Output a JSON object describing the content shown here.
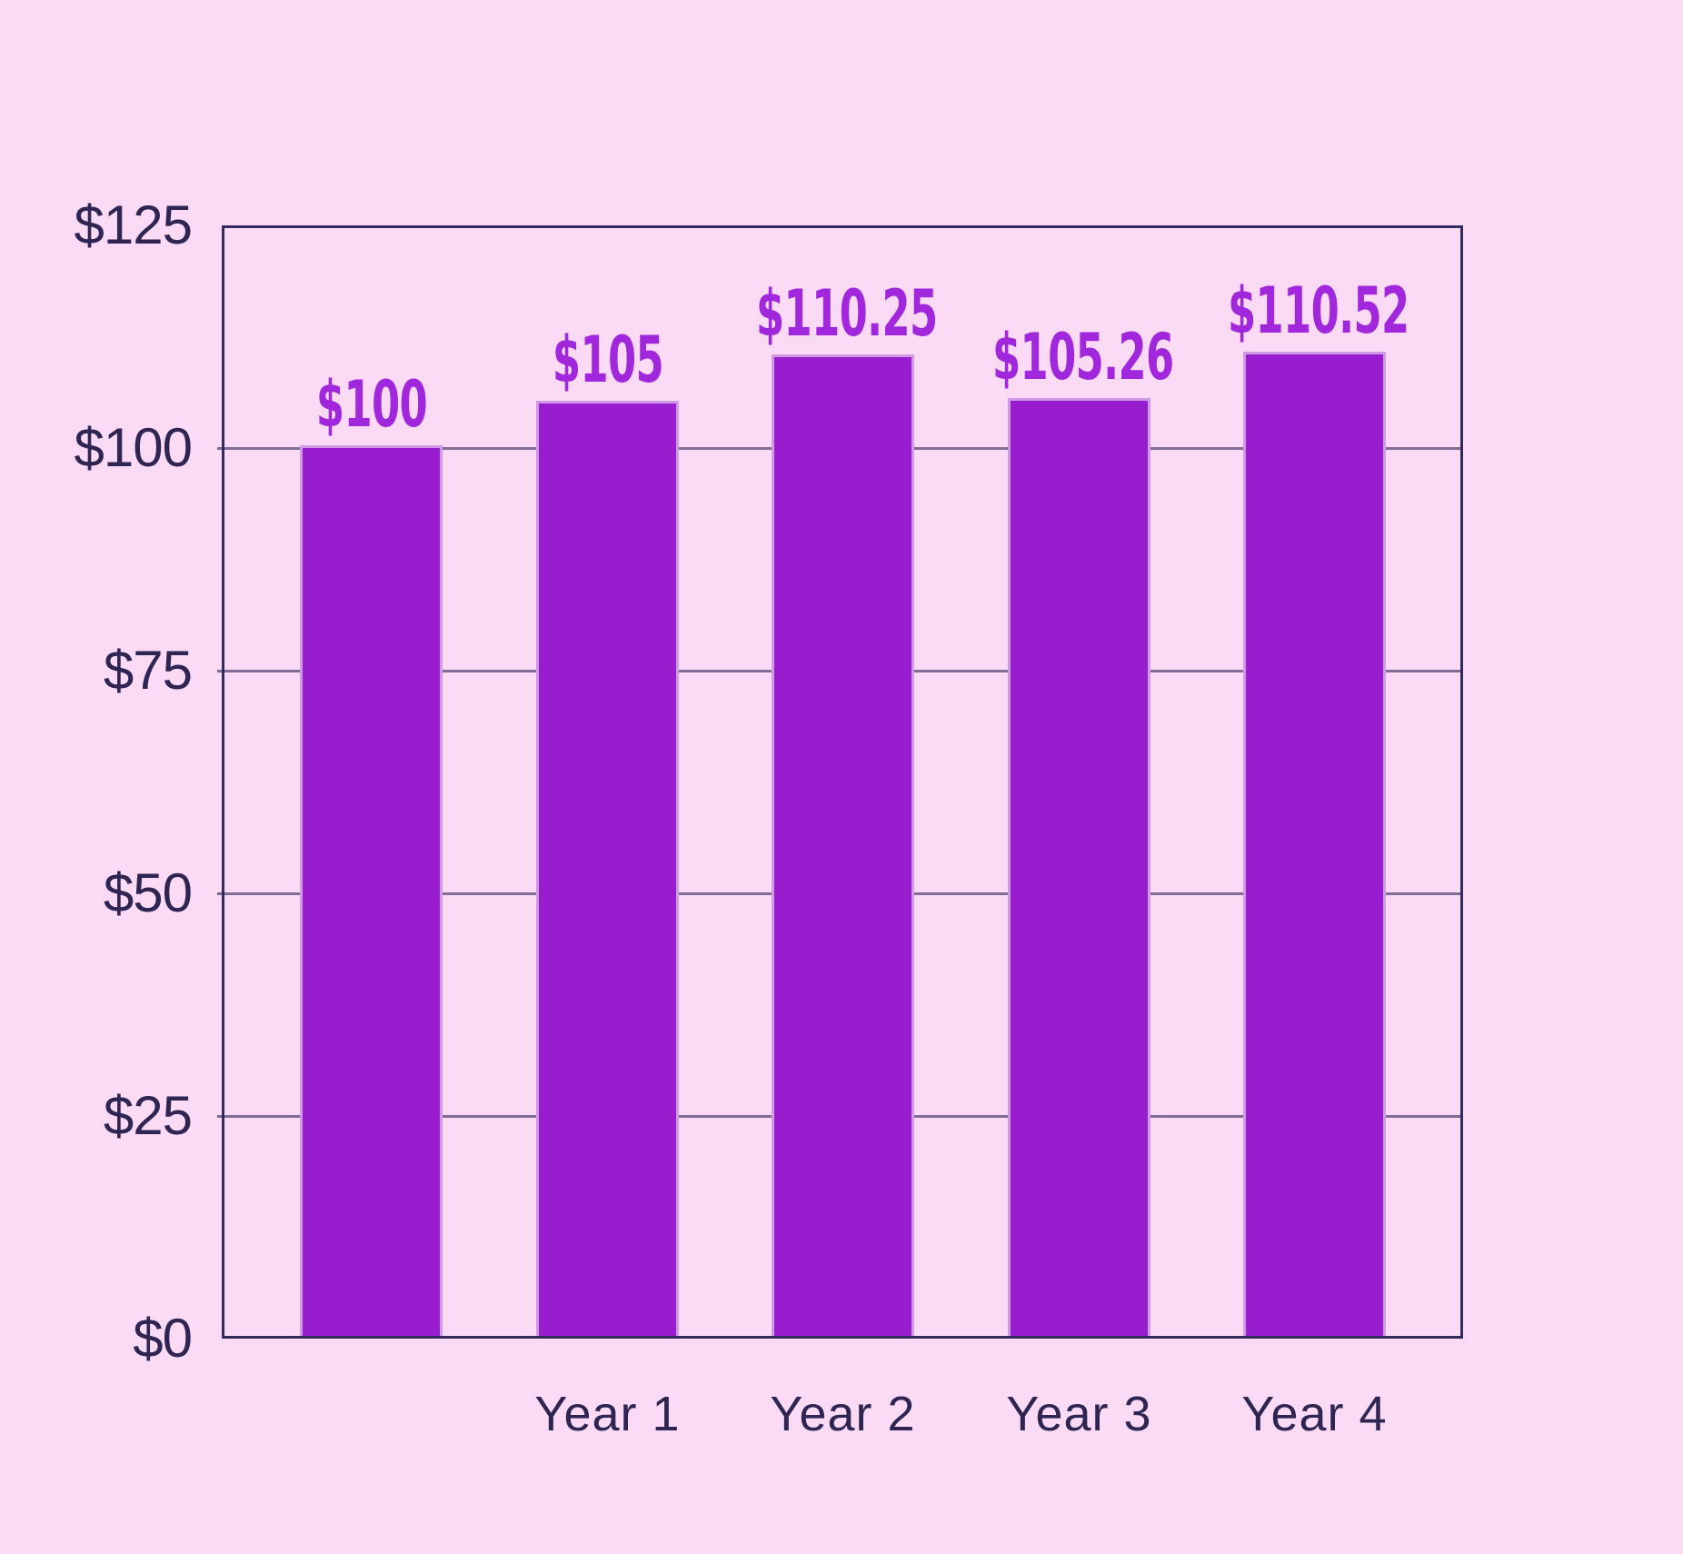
{
  "chart_data": {
    "type": "bar",
    "categories": [
      "",
      "Year 1",
      "Year 2",
      "Year 3",
      "Year 4"
    ],
    "values": [
      100,
      105,
      110.25,
      105.26,
      110.52
    ],
    "bar_labels": [
      "$100",
      "$105",
      "$110.25",
      "$105.26",
      "$110.52"
    ],
    "title": "",
    "xlabel": "",
    "ylabel": "",
    "ylim": [
      0,
      125
    ],
    "y_tick_values": [
      0,
      25,
      50,
      75,
      100,
      125
    ],
    "y_tick_labels": [
      "$0",
      "$25",
      "$50",
      "$75",
      "$100",
      "$125"
    ],
    "grid": "horizontal gridlines on, inner ticks at 25/50/75/100",
    "legend_position": "none",
    "colors": {
      "background": "#fbdaf5",
      "bar_fill": "#971dce",
      "bar_stroke": "#cf9be6",
      "bar_label_text": "#a127dc",
      "axis_box": "#332a5e",
      "gridline": "rgba(47,37,87,0.60)",
      "tick_text": "#2e2553"
    }
  }
}
